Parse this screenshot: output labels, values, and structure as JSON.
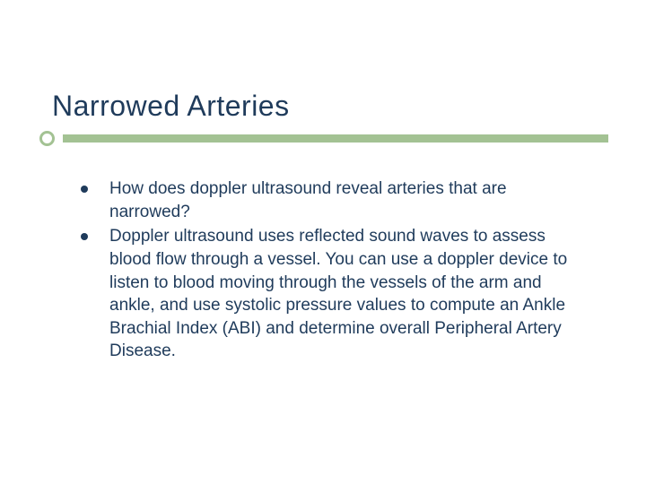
{
  "slide": {
    "title": "Narrowed Arteries",
    "title_color": "#1f3b5b",
    "title_fontsize": 32,
    "accent_color": "#a3c293",
    "background_color": "#ffffff",
    "body_color": "#1f3b5b",
    "body_fontsize": 19,
    "bullets": [
      {
        "text": "How does doppler ultrasound reveal arteries that are narrowed?"
      },
      {
        "text": "Doppler ultrasound uses reflected sound waves to assess blood flow through a vessel. You can use a doppler device to listen to blood moving through the vessels of the arm and ankle, and use systolic pressure values to compute an Ankle Brachial Index (ABI) and determine overall Peripheral Artery Disease."
      }
    ]
  }
}
